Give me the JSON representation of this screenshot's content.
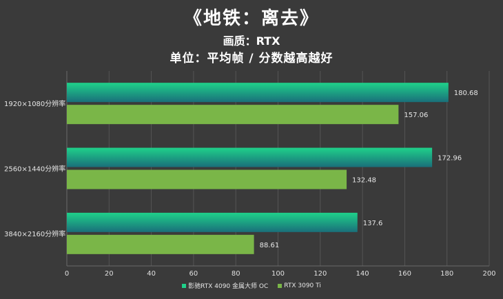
{
  "chart_data": {
    "type": "bar",
    "orientation": "horizontal",
    "title": "《地铁：离去》",
    "subtitle": "画质：RTX",
    "subtitle2": "单位：平均帧 / 分数越高越好",
    "categories": [
      "1920×1080分辨率",
      "2560×1440分辨率",
      "3840×2160分辨率"
    ],
    "series": [
      {
        "name": "影驰RTX 4090 金属大师 OC",
        "values": [
          180.68,
          172.96,
          137.6
        ],
        "value_labels": [
          "180.68",
          "172.96",
          "137.6"
        ],
        "color_top": "#1fd18a",
        "color_bottom": "#1a6f7a"
      },
      {
        "name": "RTX 3090 Ti",
        "values": [
          157.06,
          132.48,
          88.61
        ],
        "value_labels": [
          "157.06",
          "132.48",
          "88.61"
        ],
        "color_top": "#7ab648",
        "color_bottom": "#7ab648"
      }
    ],
    "xlim": [
      0,
      200
    ],
    "xticks": [
      0,
      20,
      40,
      60,
      80,
      100,
      120,
      140,
      160,
      180,
      200
    ],
    "grid": true,
    "legend": "bottom"
  }
}
